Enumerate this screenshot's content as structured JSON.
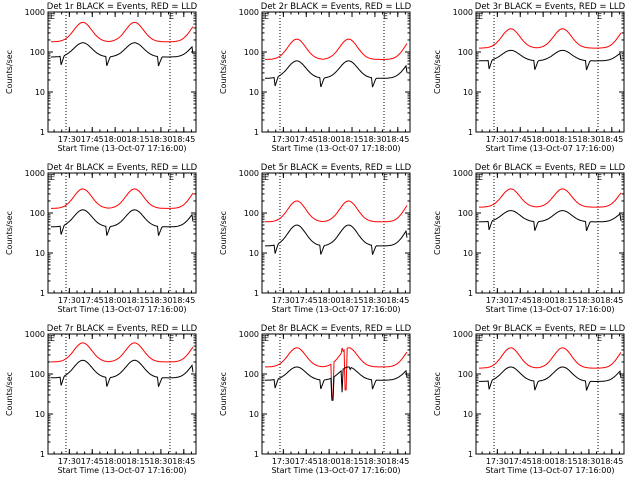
{
  "chart_data": [
    {
      "type": "line",
      "title": "Det 1r BLACK = Events, RED = LLD",
      "xlabel": "Start Time (13-Oct-07 17:16:00)",
      "ylabel": "Counts/sec",
      "yscale": "log",
      "ylim": [
        1,
        1000
      ],
      "xlim": [
        "17:16",
        "18:53"
      ],
      "xticks": [
        "17:30",
        "17:45",
        "18:00",
        "18:15",
        "18:30",
        "18:45"
      ],
      "yticks": [
        "1",
        "10",
        "100",
        "1000"
      ],
      "marker_labels": [
        "E",
        "E"
      ],
      "series": [
        {
          "color": "#ff0000",
          "pattern": "lld",
          "low": 180,
          "high": 550
        },
        {
          "color": "#000000",
          "pattern": "evt",
          "low": 75,
          "high": 170
        }
      ]
    },
    {
      "type": "line",
      "title": "Det 2r BLACK = Events, RED = LLD",
      "xlabel": "Start Time (13-Oct-07 17:18:00)",
      "ylabel": "Counts/sec",
      "yscale": "log",
      "ylim": [
        1,
        1000
      ],
      "xlim": [
        "17:16",
        "18:53"
      ],
      "xticks": [
        "17:30",
        "17:45",
        "18:00",
        "18:15",
        "18:30",
        "18:45"
      ],
      "yticks": [
        "1",
        "10",
        "100",
        "1000"
      ],
      "marker_labels": [
        "E",
        "E"
      ],
      "series": [
        {
          "color": "#ff0000",
          "pattern": "lld",
          "low": 65,
          "high": 210
        },
        {
          "color": "#000000",
          "pattern": "evt",
          "low": 22,
          "high": 60
        }
      ]
    },
    {
      "type": "line",
      "title": "Det 3r BLACK = Events, RED = LLD",
      "xlabel": "Start Time (13-Oct-07 17:16:00)",
      "ylabel": "Counts/sec",
      "yscale": "log",
      "ylim": [
        1,
        1000
      ],
      "xlim": [
        "17:16",
        "18:53"
      ],
      "xticks": [
        "17:30",
        "17:45",
        "18:00",
        "18:15",
        "18:30",
        "18:45"
      ],
      "yticks": [
        "1",
        "10",
        "100",
        "1000"
      ],
      "marker_labels": [
        "E",
        "E"
      ],
      "series": [
        {
          "color": "#ff0000",
          "pattern": "lld",
          "low": 125,
          "high": 380
        },
        {
          "color": "#000000",
          "pattern": "evt",
          "low": 60,
          "high": 110
        }
      ]
    },
    {
      "type": "line",
      "title": "Det 4r BLACK = Events, RED = LLD",
      "xlabel": "Start Time (13-Oct-07 17:16:00)",
      "ylabel": "Counts/sec",
      "yscale": "log",
      "ylim": [
        1,
        1000
      ],
      "xlim": [
        "17:16",
        "18:53"
      ],
      "xticks": [
        "17:30",
        "17:45",
        "18:00",
        "18:15",
        "18:30",
        "18:45"
      ],
      "yticks": [
        "1",
        "10",
        "100",
        "1000"
      ],
      "marker_labels": [
        "E",
        "E"
      ],
      "series": [
        {
          "color": "#ff0000",
          "pattern": "lld",
          "low": 130,
          "high": 400
        },
        {
          "color": "#000000",
          "pattern": "evt",
          "low": 45,
          "high": 120
        }
      ]
    },
    {
      "type": "line",
      "title": "Det 5r BLACK = Events, RED = LLD",
      "xlabel": "Start Time (13-Oct-07 17:16:00)",
      "ylabel": "Counts/sec",
      "yscale": "log",
      "ylim": [
        1,
        1000
      ],
      "xlim": [
        "17:16",
        "18:53"
      ],
      "xticks": [
        "17:30",
        "17:45",
        "18:00",
        "18:15",
        "18:30",
        "18:45"
      ],
      "yticks": [
        "1",
        "10",
        "100",
        "1000"
      ],
      "marker_labels": [
        "E",
        "E"
      ],
      "series": [
        {
          "color": "#ff0000",
          "pattern": "lld",
          "low": 60,
          "high": 200
        },
        {
          "color": "#000000",
          "pattern": "evt",
          "low": 15,
          "high": 50
        }
      ]
    },
    {
      "type": "line",
      "title": "Det 6r BLACK = Events, RED = LLD",
      "xlabel": "Start Time (13-Oct-07 17:16:00)",
      "ylabel": "Counts/sec",
      "yscale": "log",
      "ylim": [
        1,
        1000
      ],
      "xlim": [
        "17:16",
        "18:53"
      ],
      "xticks": [
        "17:30",
        "17:45",
        "18:00",
        "18:15",
        "18:30",
        "18:45"
      ],
      "yticks": [
        "1",
        "10",
        "100",
        "1000"
      ],
      "marker_labels": [
        "E",
        "E"
      ],
      "series": [
        {
          "color": "#ff0000",
          "pattern": "lld",
          "low": 140,
          "high": 400
        },
        {
          "color": "#000000",
          "pattern": "evt",
          "low": 60,
          "high": 115
        }
      ]
    },
    {
      "type": "line",
      "title": "Det 7r BLACK = Events, RED = LLD",
      "xlabel": "Start Time (13-Oct-07 17:16:00)",
      "ylabel": "Counts/sec",
      "yscale": "log",
      "ylim": [
        1,
        1000
      ],
      "xlim": [
        "17:16",
        "18:53"
      ],
      "xticks": [
        "17:30",
        "17:45",
        "18:00",
        "18:15",
        "18:30",
        "18:45"
      ],
      "yticks": [
        "1",
        "10",
        "100",
        "1000"
      ],
      "marker_labels": [
        "E",
        "E"
      ],
      "series": [
        {
          "color": "#ff0000",
          "pattern": "lld",
          "low": 200,
          "high": 600
        },
        {
          "color": "#000000",
          "pattern": "evt",
          "low": 80,
          "high": 220
        }
      ]
    },
    {
      "type": "line",
      "title": "Det 8r BLACK = Events, RED = LLD",
      "xlabel": "Start Time (13-Oct-07 17:16:00)",
      "ylabel": "Counts/sec",
      "yscale": "log",
      "ylim": [
        1,
        1000
      ],
      "xlim": [
        "17:16",
        "18:53"
      ],
      "xticks": [
        "17:30",
        "17:45",
        "18:00",
        "18:15",
        "18:30",
        "18:45"
      ],
      "yticks": [
        "1",
        "10",
        "100",
        "1000"
      ],
      "marker_labels": [
        "E",
        "E"
      ],
      "series": [
        {
          "color": "#ff0000",
          "pattern": "lld8",
          "low": 150,
          "high": 450
        },
        {
          "color": "#000000",
          "pattern": "evt8",
          "low": 70,
          "high": 150
        }
      ]
    },
    {
      "type": "line",
      "title": "Det 9r BLACK = Events, RED = LLD",
      "xlabel": "Start Time (13-Oct-07 17:16:00)",
      "ylabel": "Counts/sec",
      "yscale": "log",
      "ylim": [
        1,
        1000
      ],
      "xlim": [
        "17:16",
        "18:53"
      ],
      "xticks": [
        "17:30",
        "17:45",
        "18:00",
        "18:15",
        "18:30",
        "18:45"
      ],
      "yticks": [
        "1",
        "10",
        "100",
        "1000"
      ],
      "marker_labels": [
        "E",
        "E"
      ],
      "series": [
        {
          "color": "#ff0000",
          "pattern": "lld",
          "low": 140,
          "high": 450
        },
        {
          "color": "#000000",
          "pattern": "evt",
          "low": 65,
          "high": 150
        }
      ]
    }
  ]
}
